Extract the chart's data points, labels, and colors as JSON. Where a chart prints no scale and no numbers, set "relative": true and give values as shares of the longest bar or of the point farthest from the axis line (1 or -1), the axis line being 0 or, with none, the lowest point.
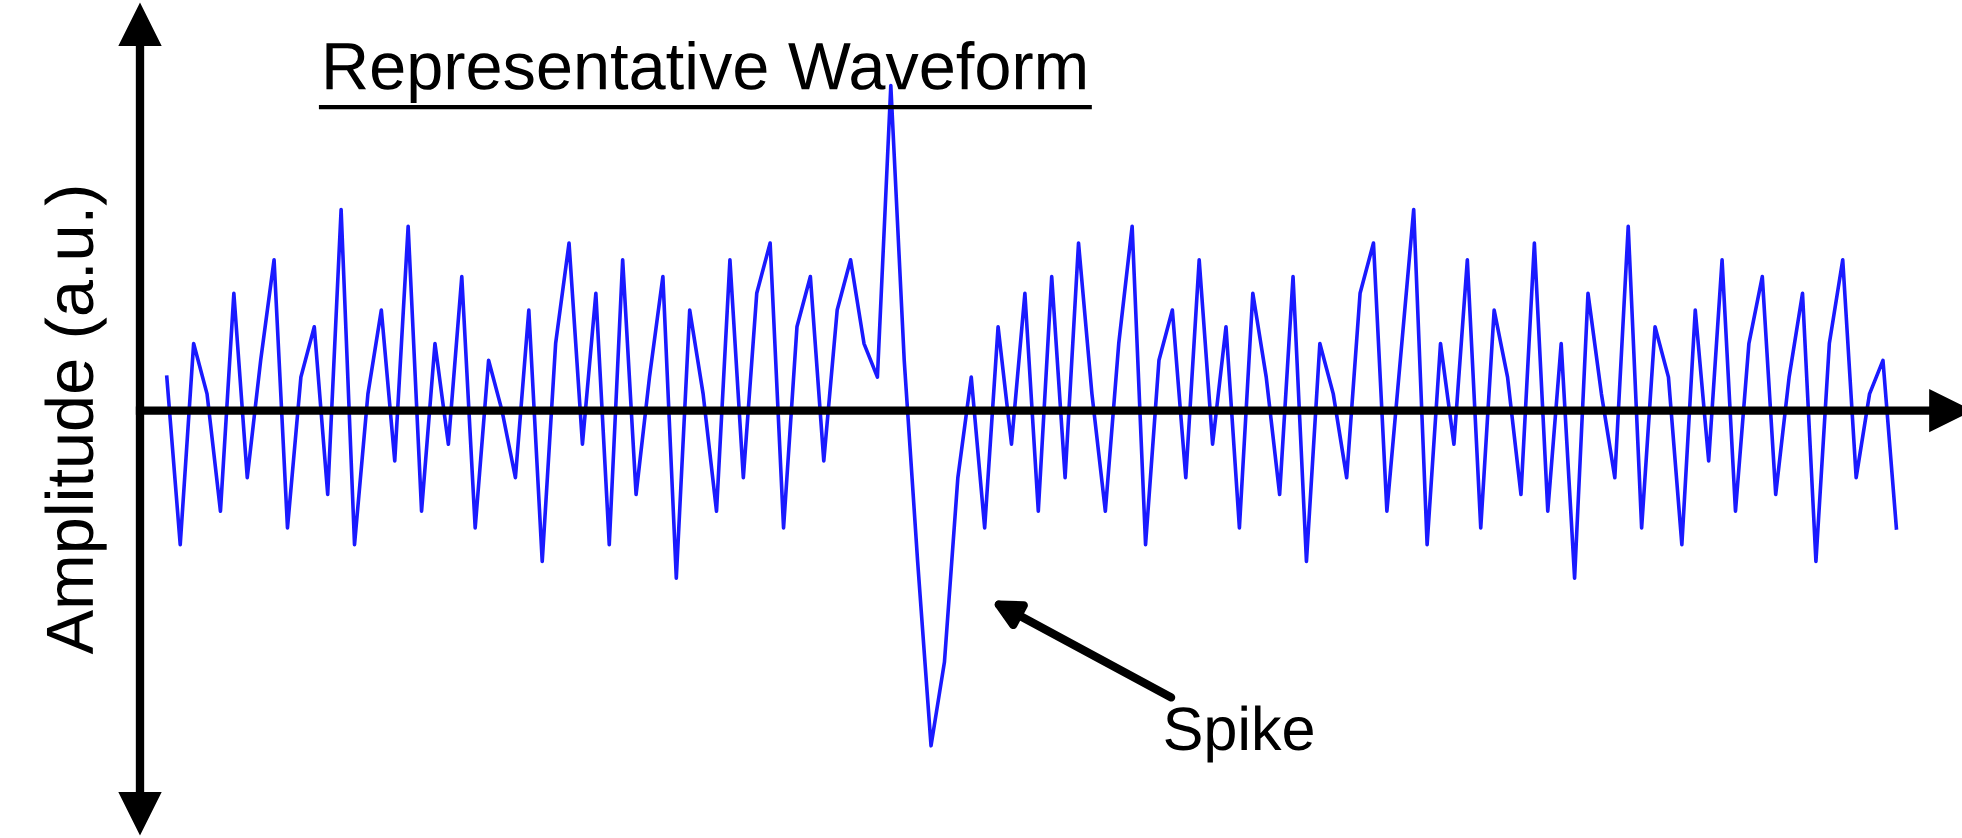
{
  "chart_data": {
    "type": "line",
    "title": "Representative Waveform",
    "ylabel": "Amplitude (a.u.)",
    "relative": true,
    "annotations": [
      "Spike"
    ],
    "categories": [
      null,
      null,
      null,
      null,
      null,
      null,
      null,
      null,
      null,
      null,
      null,
      null,
      null,
      null,
      null,
      null,
      null,
      null,
      null,
      null,
      null,
      null,
      null,
      null,
      null,
      null,
      null,
      null,
      null,
      null,
      null,
      null,
      null,
      null,
      null,
      null,
      null,
      null,
      null,
      null,
      null,
      null,
      null,
      null,
      null,
      null,
      null,
      null,
      null,
      null,
      null,
      null,
      null,
      null,
      null,
      null,
      null,
      null,
      null,
      null,
      null,
      null,
      null,
      null,
      null,
      null,
      null,
      null,
      null,
      null,
      null,
      null,
      null,
      null,
      null,
      null,
      null,
      null,
      null,
      null,
      null,
      null,
      null,
      null,
      null,
      null,
      null,
      null,
      null,
      null,
      null,
      null,
      null,
      null,
      null,
      null,
      null,
      null,
      null,
      null,
      null,
      null,
      null,
      null,
      null,
      null,
      null,
      null,
      null,
      null,
      null,
      null,
      null,
      null,
      null,
      null,
      null,
      null,
      null,
      null,
      null,
      null,
      null,
      null,
      null,
      null,
      null,
      null,
      null,
      null
    ],
    "series": [
      {
        "color": "#1a1aff",
        "values": [
          0.1,
          -0.4,
          0.2,
          0.05,
          -0.3,
          0.35,
          -0.2,
          0.15,
          0.45,
          -0.35,
          0.1,
          0.25,
          -0.25,
          0.6,
          -0.4,
          0.05,
          0.3,
          -0.15,
          0.55,
          -0.3,
          0.2,
          -0.1,
          0.4,
          -0.35,
          0.15,
          0.0,
          -0.2,
          0.3,
          -0.45,
          0.2,
          0.5,
          -0.1,
          0.35,
          -0.4,
          0.45,
          -0.25,
          0.1,
          0.4,
          -0.5,
          0.3,
          0.05,
          -0.3,
          0.45,
          -0.2,
          0.35,
          0.5,
          -0.35,
          0.25,
          0.4,
          -0.15,
          0.3,
          0.45,
          0.2,
          0.1,
          0.97,
          0.15,
          -0.45,
          -1.0,
          -0.75,
          -0.2,
          0.1,
          -0.35,
          0.25,
          -0.1,
          0.35,
          -0.3,
          0.4,
          -0.2,
          0.5,
          0.05,
          -0.3,
          0.2,
          0.55,
          -0.4,
          0.15,
          0.3,
          -0.2,
          0.45,
          -0.1,
          0.25,
          -0.35,
          0.35,
          0.1,
          -0.25,
          0.4,
          -0.45,
          0.2,
          0.05,
          -0.2,
          0.35,
          0.5,
          -0.3,
          0.15,
          0.6,
          -0.4,
          0.2,
          -0.1,
          0.45,
          -0.35,
          0.3,
          0.1,
          -0.25,
          0.5,
          -0.3,
          0.2,
          -0.5,
          0.35,
          0.05,
          -0.2,
          0.55,
          -0.35,
          0.25,
          0.1,
          -0.4,
          0.3,
          -0.15,
          0.45,
          -0.3,
          0.2,
          0.4,
          -0.25,
          0.1,
          0.35,
          -0.45,
          0.2,
          0.45,
          -0.2,
          0.05,
          0.15,
          -0.35
        ]
      }
    ]
  }
}
